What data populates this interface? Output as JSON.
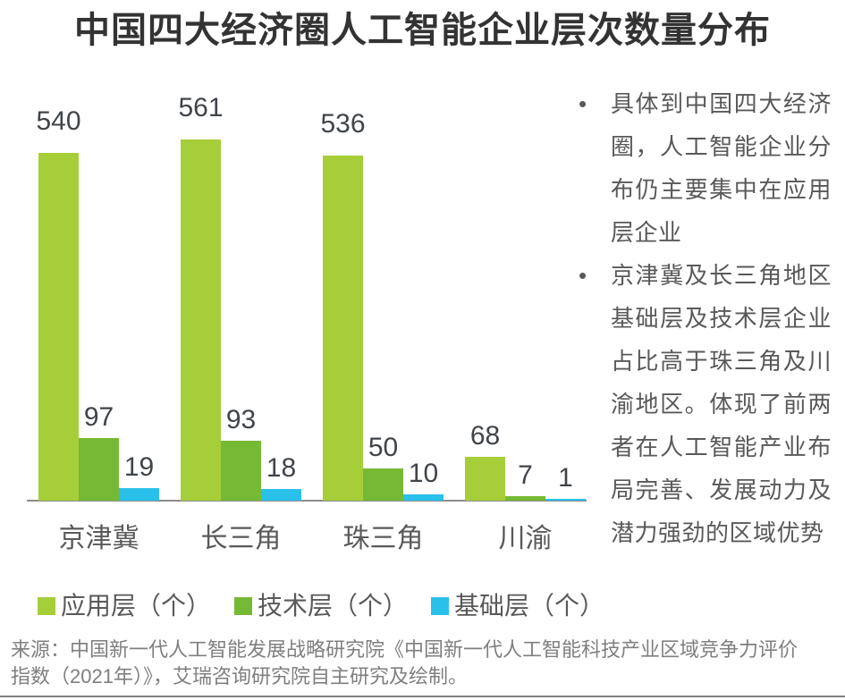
{
  "title": "中国四大经济圈人工智能企业层次数量分布",
  "chart_data": {
    "type": "bar",
    "categories": [
      "京津冀",
      "长三角",
      "珠三角",
      "川渝"
    ],
    "series": [
      {
        "name": "应用层（个）",
        "color": "#a6ce39",
        "values": [
          540,
          561,
          536,
          68
        ]
      },
      {
        "name": "技术层（个）",
        "color": "#76b934",
        "values": [
          97,
          93,
          50,
          7
        ]
      },
      {
        "name": "基础层（个）",
        "color": "#29c1ea",
        "values": [
          19,
          18,
          10,
          1
        ]
      }
    ],
    "ylim": [
      0,
      580
    ],
    "grid": false,
    "data_labels": true,
    "legend_position": "bottom-left",
    "xlabel": "",
    "ylabel": ""
  },
  "notes": {
    "items": [
      "具体到中国四大经济圈，人工智能企业分布仍主要集中在应用层企业",
      "京津冀及长三角地区基础层及技术层企业占比高于珠三角及川渝地区。体现了前两者在人工智能产业布局完善、发展动力及潜力强劲的区域优势"
    ]
  },
  "source": "来源：中国新一代人工智能发展战略研究院《中国新一代人工智能科技产业区域竞争力评价指数（2021年）》，艾瑞咨询研究院自主研究及绘制。",
  "colors": {
    "title_text": "#333333",
    "value_label_text": "#40454a",
    "axis_text": "#595959",
    "note_text": "#595959",
    "source_text": "#7f7f7f",
    "axis_line": "#8c8c8c",
    "bottom_rule": "#808080"
  }
}
